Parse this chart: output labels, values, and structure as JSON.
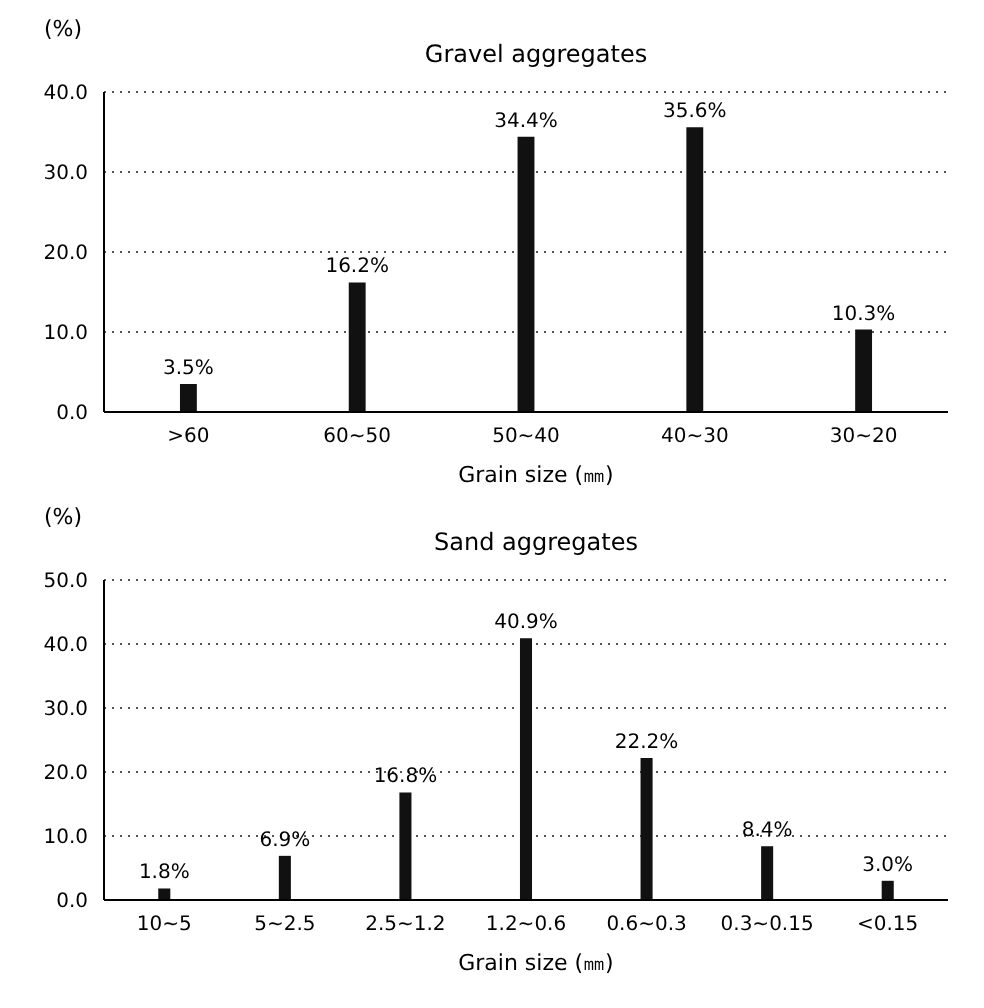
{
  "chart_data": [
    {
      "type": "bar",
      "title": "Gravel aggregates",
      "xlabel": "Grain size (㎜)",
      "ylabel": "(%)",
      "categories": [
        ">60",
        "60~50",
        "50~40",
        "40~30",
        "30~20"
      ],
      "values": [
        3.5,
        16.2,
        34.4,
        35.6,
        10.3
      ],
      "value_labels": [
        "3.5%",
        "16.2%",
        "34.4%",
        "35.6%",
        "10.3%"
      ],
      "color": "#111111",
      "ylim": [
        0,
        40
      ],
      "yticks": [
        {
          "value": 0,
          "label": "0.0"
        },
        {
          "value": 10,
          "label": "10.0"
        },
        {
          "value": 20,
          "label": "20.0"
        },
        {
          "value": 30,
          "label": "30.0"
        },
        {
          "value": 40,
          "label": "40.0"
        }
      ],
      "grid": "y"
    },
    {
      "type": "bar",
      "title": "Sand aggregates",
      "xlabel": "Grain size (㎜)",
      "ylabel": "(%)",
      "categories": [
        "10~5",
        "5~2.5",
        "2.5~1.2",
        "1.2~0.6",
        "0.6~0.3",
        "0.3~0.15",
        "<0.15"
      ],
      "values": [
        1.8,
        6.9,
        16.8,
        40.9,
        22.2,
        8.4,
        3.0
      ],
      "value_labels": [
        "1.8%",
        "6.9%",
        "16.8%",
        "40.9%",
        "22.2%",
        "8.4%",
        "3.0%"
      ],
      "color": "#111111",
      "ylim": [
        0,
        50
      ],
      "yticks": [
        {
          "value": 0,
          "label": "0.0"
        },
        {
          "value": 10,
          "label": "10.0"
        },
        {
          "value": 20,
          "label": "20.0"
        },
        {
          "value": 30,
          "label": "30.0"
        },
        {
          "value": 40,
          "label": "40.0"
        },
        {
          "value": 50,
          "label": "50.0"
        }
      ],
      "grid": "y"
    }
  ]
}
